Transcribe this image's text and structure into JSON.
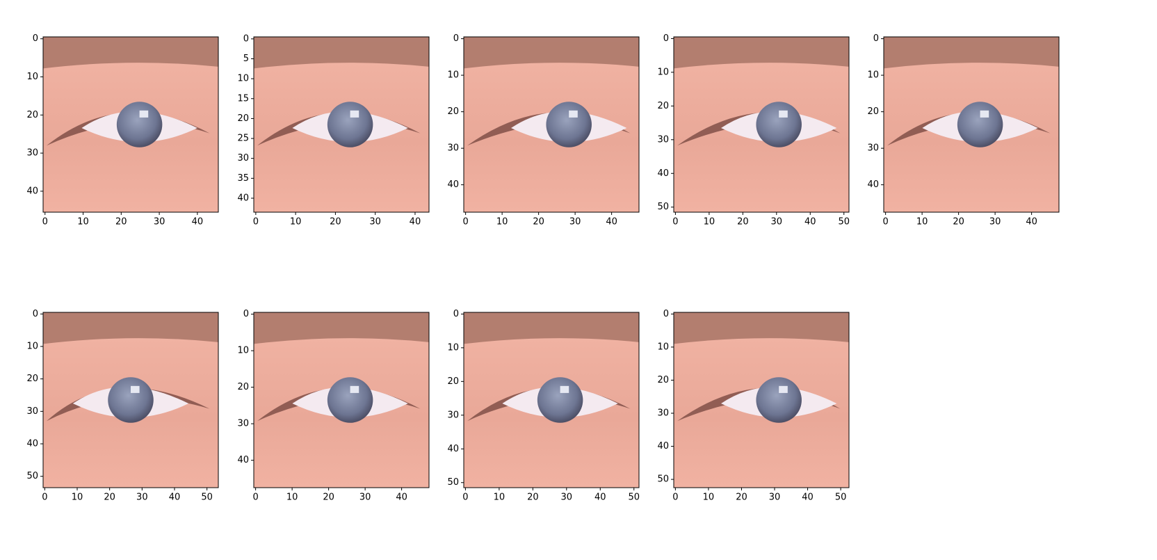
{
  "chart_data": [
    {
      "type": "image",
      "xlim": [
        -0.5,
        45.5
      ],
      "ylim": [
        45.5,
        -0.5
      ],
      "xticks": [
        0,
        10,
        20,
        30,
        40
      ],
      "yticks": [
        0,
        10,
        20,
        30,
        40
      ]
    },
    {
      "type": "image",
      "xlim": [
        -0.5,
        43.5
      ],
      "ylim": [
        43.5,
        -0.5
      ],
      "xticks": [
        0,
        10,
        20,
        30,
        40
      ],
      "yticks": [
        0,
        5,
        10,
        15,
        20,
        25,
        30,
        35,
        40
      ]
    },
    {
      "type": "image",
      "xlim": [
        -0.5,
        47.5
      ],
      "ylim": [
        47.5,
        -0.5
      ],
      "xticks": [
        0,
        10,
        20,
        30,
        40
      ],
      "yticks": [
        0,
        10,
        20,
        30,
        40
      ]
    },
    {
      "type": "image",
      "xlim": [
        -0.5,
        51.5
      ],
      "ylim": [
        51.5,
        -0.5
      ],
      "xticks": [
        0,
        10,
        20,
        30,
        40,
        50
      ],
      "yticks": [
        0,
        10,
        20,
        30,
        40,
        50
      ]
    },
    {
      "type": "image",
      "xlim": [
        -0.5,
        47.5
      ],
      "ylim": [
        47.5,
        -0.5
      ],
      "xticks": [
        0,
        10,
        20,
        30,
        40
      ],
      "yticks": [
        0,
        10,
        20,
        30,
        40
      ]
    },
    {
      "type": "image",
      "xlim": [
        -0.5,
        53.5
      ],
      "ylim": [
        53.5,
        -0.5
      ],
      "xticks": [
        0,
        10,
        20,
        30,
        40,
        50
      ],
      "yticks": [
        0,
        10,
        20,
        30,
        40,
        50
      ]
    },
    {
      "type": "image",
      "xlim": [
        -0.5,
        47.5
      ],
      "ylim": [
        47.5,
        -0.5
      ],
      "xticks": [
        0,
        10,
        20,
        30,
        40
      ],
      "yticks": [
        0,
        10,
        20,
        30,
        40
      ]
    },
    {
      "type": "image",
      "xlim": [
        -0.5,
        51.5
      ],
      "ylim": [
        51.5,
        -0.5
      ],
      "xticks": [
        0,
        10,
        20,
        30,
        40,
        50
      ],
      "yticks": [
        0,
        10,
        20,
        30,
        40,
        50
      ]
    },
    {
      "type": "image",
      "xlim": [
        -0.5,
        52.5
      ],
      "ylim": [
        52.5,
        -0.5
      ],
      "xticks": [
        0,
        10,
        20,
        30,
        40,
        50
      ],
      "yticks": [
        0,
        10,
        20,
        30,
        40,
        50
      ]
    }
  ]
}
